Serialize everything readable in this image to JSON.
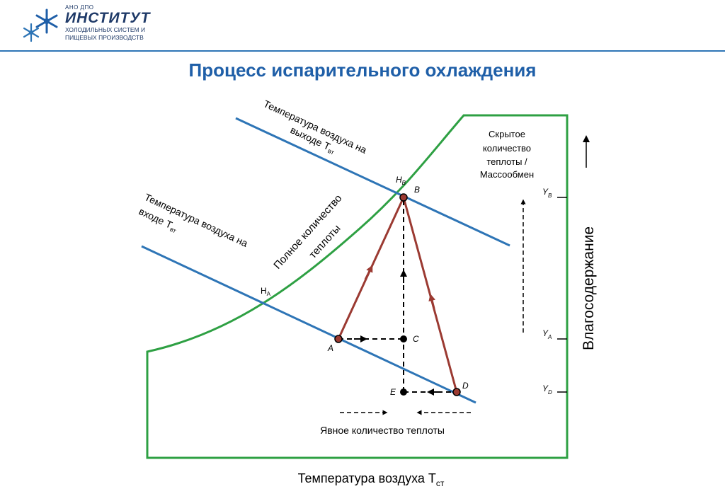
{
  "header": {
    "org_small": "АНО ДПО",
    "org_name": "ИНСТИТУТ",
    "org_line1": "ХОЛОДИЛЬНЫХ СИСТЕМ И",
    "org_line2": "ПИЩЕВЫХ ПРОИЗВОДСТВ"
  },
  "slide": {
    "title": "Процесс испарительного охлаждения"
  },
  "diagram": {
    "outlet_line_label_1": "Температура воздуха на",
    "outlet_line_label_2": "выходе Т",
    "outlet_line_sub": "вт",
    "inlet_line_label_1": "Температура воздуха на",
    "inlet_line_label_2": "входе Т",
    "inlet_line_sub": "вт",
    "total_heat_1": "Полное количество",
    "total_heat_2": "теплоты",
    "latent_1": "Скрытое",
    "latent_2": "количество",
    "latent_3": "теплоты /",
    "latent_4": "Массообмен",
    "sensible": "Явное количество теплоты",
    "x_axis": "Температура воздуха Т",
    "x_axis_sub": "ст",
    "y_axis": "Влагосодержание",
    "point_A": "A",
    "point_B": "B",
    "point_C": "C",
    "point_D": "D",
    "point_E": "E",
    "H_B_main": "H",
    "H_B_sub": "B",
    "H_A_main": "H",
    "H_A_sub": "A",
    "Y_B_main": "Y",
    "Y_B_sub": "B",
    "Y_A_main": "Y",
    "Y_A_sub": "A",
    "Y_D_main": "Y",
    "Y_D_sub": "D"
  },
  "colors": {
    "saturation_curve": "#2ea043",
    "enthalpy_lines": "#2e75b6",
    "process_lines": "#9b3a32",
    "title": "#1f5fa8"
  }
}
